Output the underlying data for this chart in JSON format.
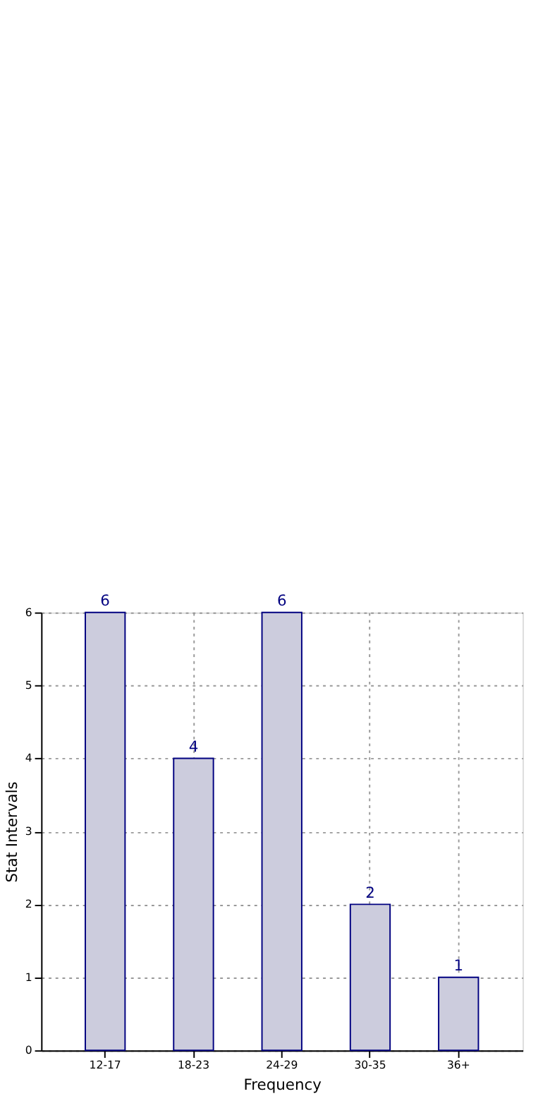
{
  "chart_data": {
    "type": "bar",
    "xlabel": "Frequency",
    "ylabel": "Stat Intervals",
    "categories": [
      "12-17",
      "18-23",
      "24-29",
      "30-35",
      "36+"
    ],
    "values": [
      6,
      4,
      6,
      2,
      1
    ],
    "color": "#ccccdd",
    "ylim": [
      0,
      6
    ],
    "yticks": [
      0,
      1,
      2,
      3,
      4,
      5,
      6
    ],
    "grid": true,
    "data_labels": true
  }
}
